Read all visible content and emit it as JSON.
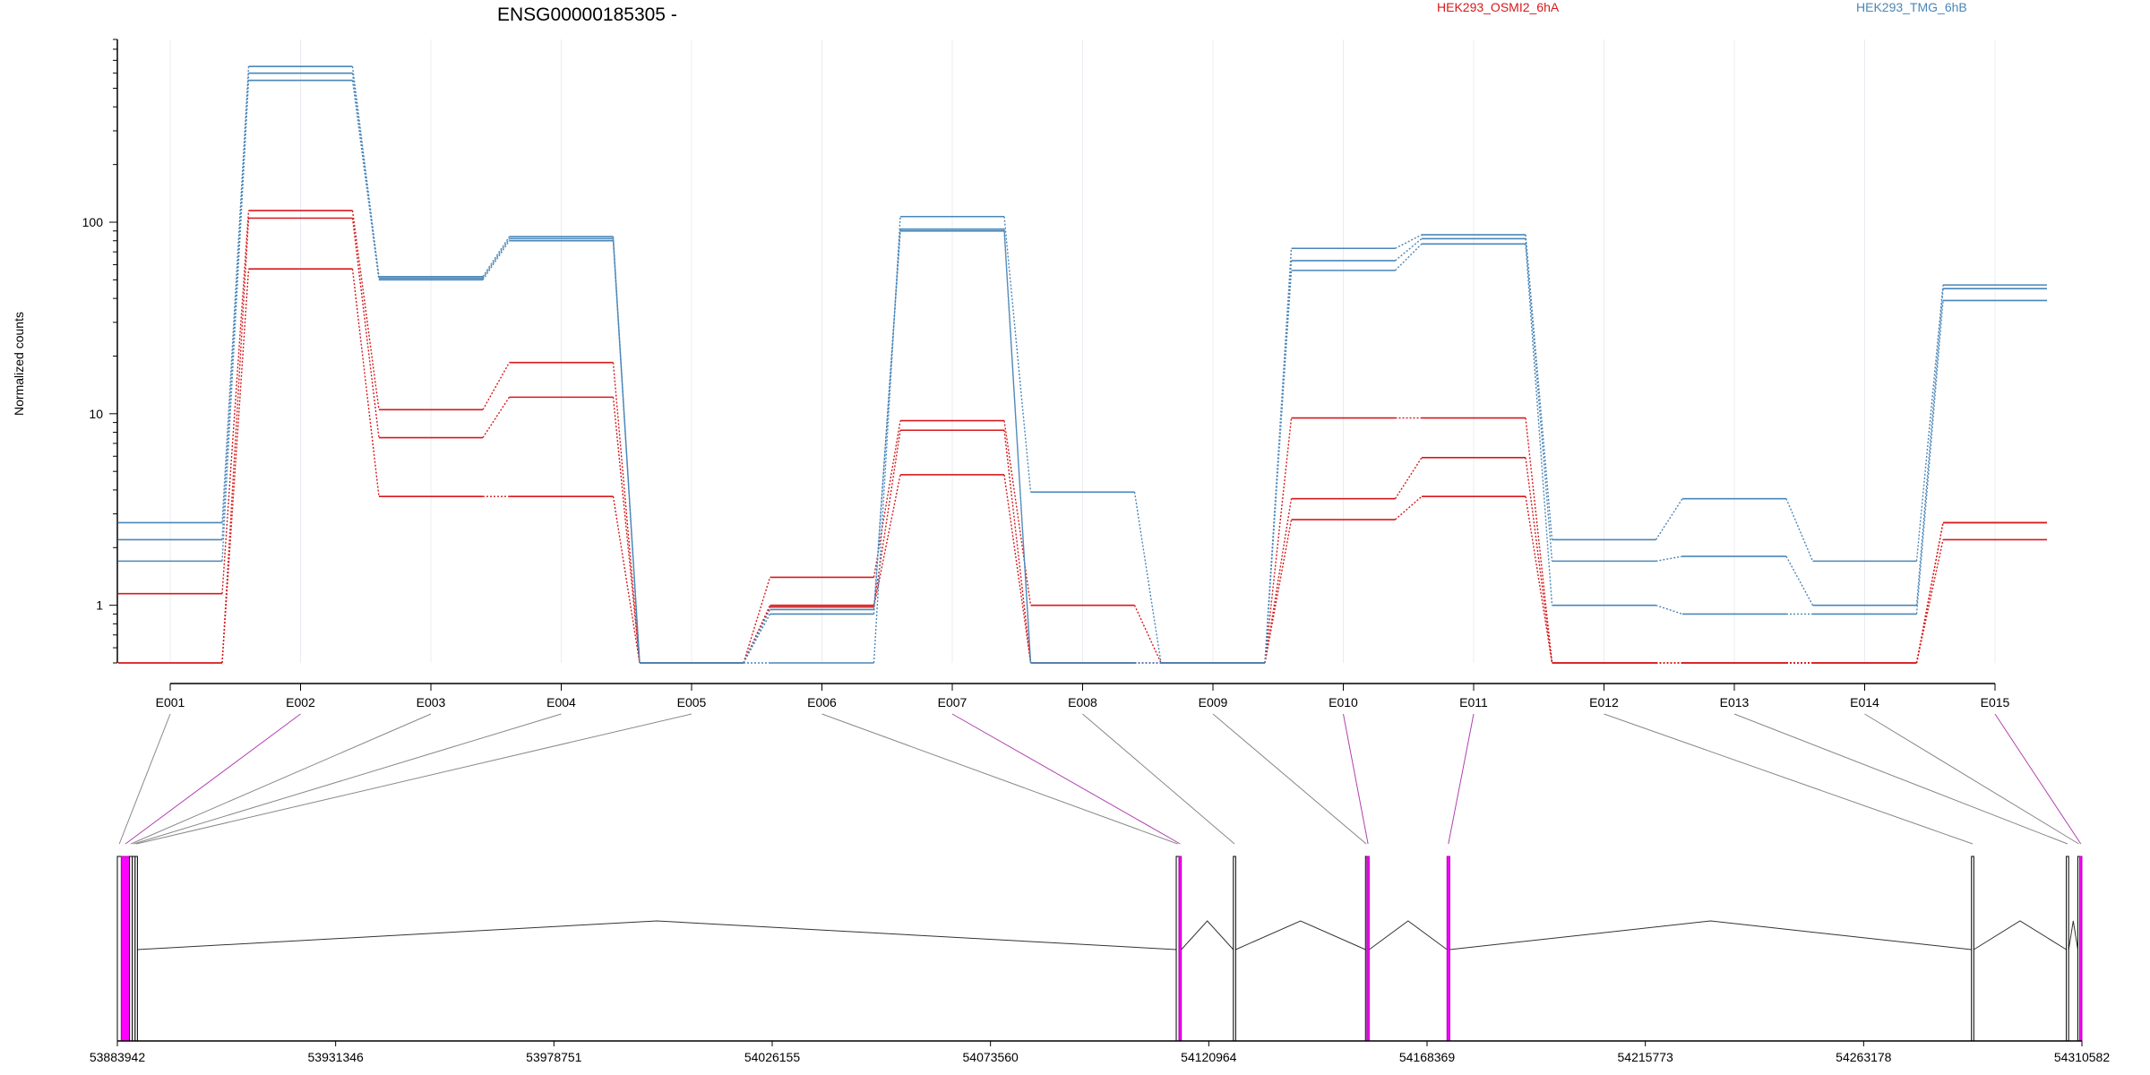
{
  "title": "ENSG00000185305 -",
  "legend": [
    {
      "label": "HEK293_OSMI2_6hA",
      "color": "#d7191c"
    },
    {
      "label": "HEK293_TMG_6hB",
      "color": "#4a86b8"
    }
  ],
  "chart_data": {
    "type": "line",
    "ylabel": "Normalized counts",
    "yscale": "log",
    "ylim": [
      0.5,
      900
    ],
    "yticks": [
      1,
      10,
      100
    ],
    "categories": [
      "E001",
      "E002",
      "E003",
      "E004",
      "E005",
      "E006",
      "E007",
      "E008",
      "E009",
      "E010",
      "E011",
      "E012",
      "E013",
      "E014",
      "E015"
    ],
    "series": [
      {
        "name": "HEK293_OSMI2_6hA",
        "color": "#d7191c",
        "values": [
          1.15,
          115,
          10.5,
          18.5,
          0.5,
          1.4,
          9.2,
          1.0,
          0.5,
          9.5,
          9.5,
          0.5,
          0.5,
          0.5,
          2.7
        ]
      },
      {
        "name": "HEK293_OSMI2_6hA",
        "color": "#d7191c",
        "values": [
          0.5,
          105,
          7.5,
          12.2,
          0.5,
          1.0,
          8.2,
          0.5,
          0.5,
          3.6,
          5.9,
          0.5,
          0.5,
          0.5,
          2.7
        ]
      },
      {
        "name": "HEK293_OSMI2_6hA",
        "color": "#d7191c",
        "values": [
          0.5,
          57,
          3.7,
          3.7,
          0.5,
          0.98,
          4.8,
          0.5,
          0.5,
          2.8,
          3.7,
          0.5,
          0.5,
          0.5,
          2.2
        ]
      },
      {
        "name": "HEK293_TMG_6hB",
        "color": "#4a86b8",
        "values": [
          2.7,
          650,
          52,
          84,
          0.5,
          0.5,
          107,
          3.9,
          0.5,
          73,
          86,
          2.2,
          3.6,
          1.7,
          47
        ]
      },
      {
        "name": "HEK293_TMG_6hB",
        "color": "#4a86b8",
        "values": [
          2.2,
          600,
          51,
          82,
          0.5,
          0.9,
          92,
          0.5,
          0.5,
          63,
          82,
          1.7,
          1.8,
          1.0,
          45
        ]
      },
      {
        "name": "HEK293_TMG_6hB",
        "color": "#4a86b8",
        "values": [
          1.7,
          550,
          50,
          80,
          0.5,
          0.95,
          90,
          0.5,
          0.5,
          56,
          77,
          1.0,
          0.9,
          0.9,
          39
        ]
      }
    ],
    "gene_model": {
      "start": 53883942,
      "end": 54310582,
      "ticks": [
        53883942,
        53931346,
        53978751,
        54026155,
        54073560,
        54120964,
        54168369,
        54215773,
        54263178,
        54310582
      ],
      "tick_labels": [
        "53883942",
        "53931346",
        "53978751",
        "54026155",
        "54073560",
        "54120964",
        "54168369",
        "54215773",
        "54263178",
        "54310582"
      ],
      "exons": [
        {
          "id": "E001",
          "start": 53883942,
          "end": 53884800,
          "highlight": false
        },
        {
          "id": "E002",
          "start": 53884800,
          "end": 53886600,
          "highlight": true
        },
        {
          "id": "E003",
          "start": 53886600,
          "end": 53887200,
          "highlight": false
        },
        {
          "id": "E004",
          "start": 53887200,
          "end": 53887800,
          "highlight": false
        },
        {
          "id": "E005",
          "start": 53887800,
          "end": 53888300,
          "highlight": false
        },
        {
          "id": "E006",
          "start": 54113900,
          "end": 54114500,
          "highlight": false
        },
        {
          "id": "E007",
          "start": 54114500,
          "end": 54115000,
          "highlight": true
        },
        {
          "id": "E008",
          "start": 54126300,
          "end": 54126800,
          "highlight": false
        },
        {
          "id": "E009",
          "start": 54155000,
          "end": 54155300,
          "highlight": false
        },
        {
          "id": "E010",
          "start": 54155300,
          "end": 54155800,
          "highlight": true
        },
        {
          "id": "E011",
          "start": 54172700,
          "end": 54173300,
          "highlight": true
        },
        {
          "id": "E012",
          "start": 54286600,
          "end": 54287100,
          "highlight": false
        },
        {
          "id": "E013",
          "start": 54307200,
          "end": 54307700,
          "highlight": false
        },
        {
          "id": "E014",
          "start": 54309700,
          "end": 54310100,
          "highlight": false
        },
        {
          "id": "E015",
          "start": 54310100,
          "end": 54310582,
          "highlight": true
        }
      ]
    }
  }
}
